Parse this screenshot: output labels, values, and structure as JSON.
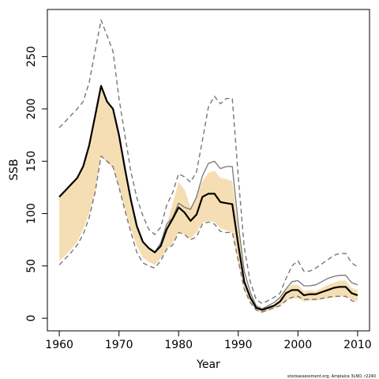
{
  "chart_data": {
    "type": "line",
    "title": "",
    "xlabel": "Year",
    "ylabel": "SSB",
    "xlim": [
      1958,
      2012
    ],
    "ylim": [
      -12,
      295
    ],
    "x_ticks": [
      1960,
      1970,
      1980,
      1990,
      2000,
      2010
    ],
    "y_ticks": [
      0,
      50,
      100,
      150,
      200,
      250
    ],
    "grid": false,
    "footnote": "stockassessment.org, Amplaice 3LNO, r2240",
    "colors": {
      "band": "#f5deb3",
      "main": "#000000",
      "alt": "#333333",
      "alt_ci": "#777777"
    },
    "years": [
      1960,
      1961,
      1962,
      1963,
      1964,
      1965,
      1966,
      1967,
      1968,
      1969,
      1970,
      1971,
      1972,
      1973,
      1974,
      1975,
      1976,
      1977,
      1978,
      1979,
      1980,
      1981,
      1982,
      1983,
      1984,
      1985,
      1986,
      1987,
      1988,
      1989,
      1990,
      1991,
      1992,
      1993,
      1994,
      1995,
      1996,
      1997,
      1998,
      1999,
      2000,
      2001,
      2002,
      2003,
      2004,
      2005,
      2006,
      2007,
      2008,
      2009,
      2010
    ],
    "series": [
      {
        "style": "estimate",
        "values": [
          116,
          122,
          128,
          134,
          145,
          165,
          193,
          222,
          207,
          200,
          175,
          143,
          113,
          88,
          73,
          67,
          63,
          69,
          85,
          95,
          106,
          101,
          93,
          99,
          116,
          119,
          119,
          111,
          110,
          109,
          70,
          35,
          20,
          10,
          8,
          10,
          12,
          16,
          24,
          27,
          27,
          22,
          23,
          23,
          25,
          27,
          29,
          30,
          30,
          24,
          22
        ]
      },
      {
        "style": "band_upper",
        "values": [
          116,
          122,
          128,
          134,
          145,
          165,
          193,
          222,
          207,
          200,
          175,
          143,
          113,
          88,
          73,
          67,
          63,
          72,
          90,
          110,
          130,
          123,
          106,
          116,
          131,
          139,
          141,
          134,
          133,
          131,
          85,
          40,
          22,
          11,
          9,
          12,
          13,
          19,
          28,
          32,
          32,
          26,
          27,
          26,
          29,
          32,
          34,
          36,
          36,
          29,
          27
        ]
      },
      {
        "style": "band_lower",
        "values": [
          55,
          60,
          66,
          73,
          85,
          100,
          120,
          155,
          149,
          143,
          125,
          104,
          85,
          69,
          58,
          54,
          51,
          57,
          66,
          72,
          82,
          80,
          76,
          82,
          91,
          93,
          92,
          86,
          84,
          82,
          52,
          27,
          15,
          7,
          5,
          7,
          9,
          12,
          17,
          19,
          19,
          16,
          17,
          17,
          18,
          19,
          20,
          21,
          21,
          18,
          16
        ]
      },
      {
        "style": "alternative",
        "values": [
          116,
          122,
          128,
          134,
          145,
          165,
          193,
          222,
          207,
          200,
          175,
          143,
          113,
          88,
          73,
          67,
          63,
          72,
          90,
          96,
          110,
          106,
          104,
          116,
          136,
          148,
          150,
          143,
          145,
          145,
          90,
          45,
          25,
          12,
          9,
          12,
          15,
          20,
          28,
          35,
          36,
          31,
          31,
          32,
          35,
          38,
          40,
          41,
          41,
          34,
          32
        ]
      },
      {
        "style": "alternative_upper",
        "values": [
          182,
          188,
          194,
          200,
          207,
          225,
          255,
          285,
          270,
          255,
          210,
          175,
          140,
          115,
          98,
          85,
          80,
          87,
          108,
          120,
          138,
          135,
          130,
          140,
          170,
          202,
          212,
          205,
          210,
          210,
          135,
          68,
          35,
          18,
          14,
          17,
          20,
          24,
          38,
          50,
          55,
          45,
          45,
          48,
          52,
          56,
          60,
          62,
          62,
          53,
          49
        ]
      },
      {
        "style": "alternative_lower",
        "values": [
          51,
          57,
          63,
          70,
          80,
          96,
          120,
          155,
          150,
          145,
          125,
          103,
          82,
          63,
          53,
          50,
          48,
          55,
          66,
          70,
          82,
          80,
          75,
          78,
          90,
          92,
          90,
          83,
          82,
          82,
          55,
          28,
          15,
          8,
          6,
          8,
          10,
          12,
          17,
          20,
          21,
          18,
          18,
          18,
          19,
          20,
          21,
          21,
          21,
          17,
          15
        ]
      }
    ]
  }
}
